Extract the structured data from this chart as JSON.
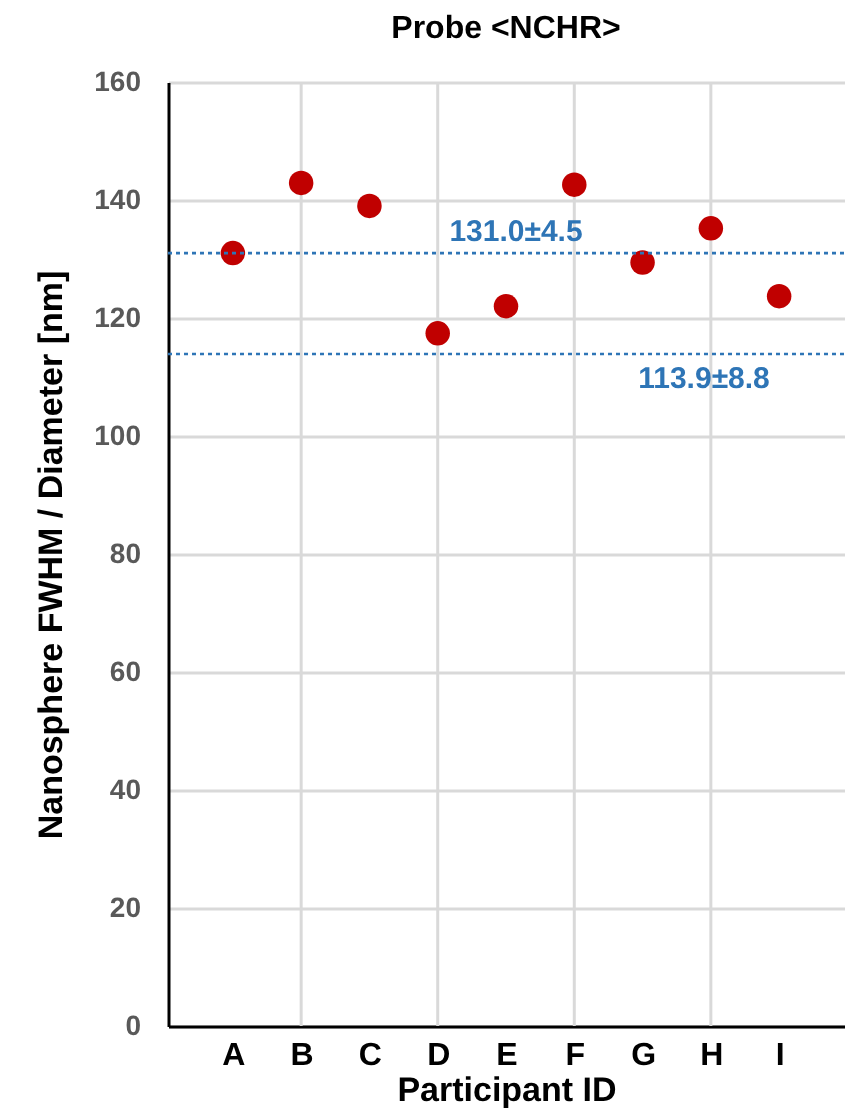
{
  "chart_data": {
    "type": "scatter",
    "title": "Probe  <NCHR>",
    "xlabel": "Participant ID",
    "ylabel": "Nanosphere FWHM / Diameter  [nm]",
    "categories": [
      "A",
      "B",
      "C",
      "D",
      "E",
      "F",
      "G",
      "H",
      "I"
    ],
    "series": [
      {
        "color": "#c00000",
        "values": [
          131.0,
          142.9,
          139.0,
          117.4,
          122.0,
          142.6,
          129.4,
          135.2,
          123.7
        ]
      }
    ],
    "ylim": [
      0,
      160
    ],
    "yticks": [
      0,
      20,
      40,
      60,
      80,
      100,
      120,
      140,
      160
    ],
    "grid": true,
    "marker": "circle",
    "ref_lines": [
      {
        "axis": "y",
        "value": 131.0,
        "label": "131.0±4.5",
        "color": "#2e75b6",
        "line_style": "dotted"
      },
      {
        "axis": "y",
        "value": 113.9,
        "label": "113.9±8.8",
        "color": "#2e75b6",
        "line_style": "dotted"
      }
    ]
  }
}
